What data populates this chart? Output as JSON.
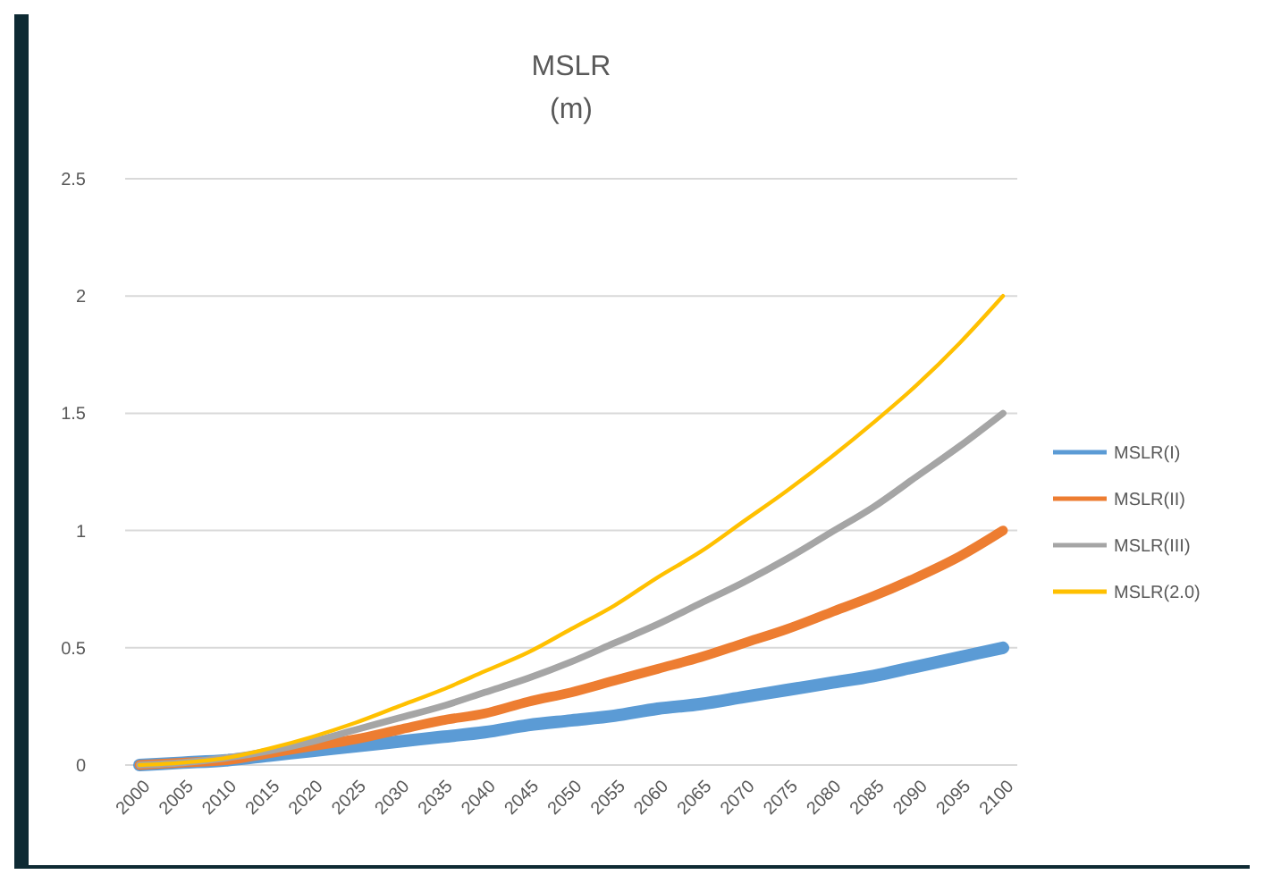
{
  "chart_data": {
    "type": "line",
    "title": "MSLR",
    "subtitle": "(m)",
    "categories": [
      "2000",
      "2005",
      "2010",
      "2015",
      "2020",
      "2025",
      "2030",
      "2035",
      "2040",
      "2045",
      "2050",
      "2055",
      "2060",
      "2065",
      "2070",
      "2075",
      "2080",
      "2085",
      "2090",
      "2095",
      "2100"
    ],
    "series": [
      {
        "name": "MSLR(I)",
        "color": "#5b9bd5",
        "values": [
          0,
          0.01,
          0.02,
          0.04,
          0.06,
          0.08,
          0.1,
          0.12,
          0.14,
          0.17,
          0.19,
          0.21,
          0.24,
          0.26,
          0.29,
          0.32,
          0.35,
          0.38,
          0.42,
          0.46,
          0.5
        ]
      },
      {
        "name": "MSLR(II)",
        "color": "#ed7d31",
        "values": [
          0,
          0.01,
          0.02,
          0.05,
          0.08,
          0.11,
          0.15,
          0.19,
          0.22,
          0.27,
          0.31,
          0.36,
          0.41,
          0.46,
          0.52,
          0.58,
          0.65,
          0.72,
          0.8,
          0.89,
          1.0
        ]
      },
      {
        "name": "MSLR(III)",
        "color": "#a5a5a5",
        "values": [
          0,
          0.01,
          0.03,
          0.06,
          0.1,
          0.15,
          0.2,
          0.25,
          0.31,
          0.37,
          0.44,
          0.52,
          0.6,
          0.69,
          0.78,
          0.88,
          0.99,
          1.1,
          1.23,
          1.36,
          1.5
        ]
      },
      {
        "name": "MSLR(2.0)",
        "color": "#ffc000",
        "values": [
          0,
          0.01,
          0.03,
          0.07,
          0.12,
          0.18,
          0.25,
          0.32,
          0.4,
          0.48,
          0.58,
          0.68,
          0.8,
          0.91,
          1.04,
          1.17,
          1.31,
          1.46,
          1.62,
          1.8,
          2.0
        ]
      }
    ],
    "ylim": [
      0,
      2.5
    ],
    "yticks": [
      0,
      0.5,
      1,
      1.5,
      2,
      2.5
    ],
    "grid": "y",
    "legend": "right",
    "marker": "none",
    "line_style": "solid"
  }
}
